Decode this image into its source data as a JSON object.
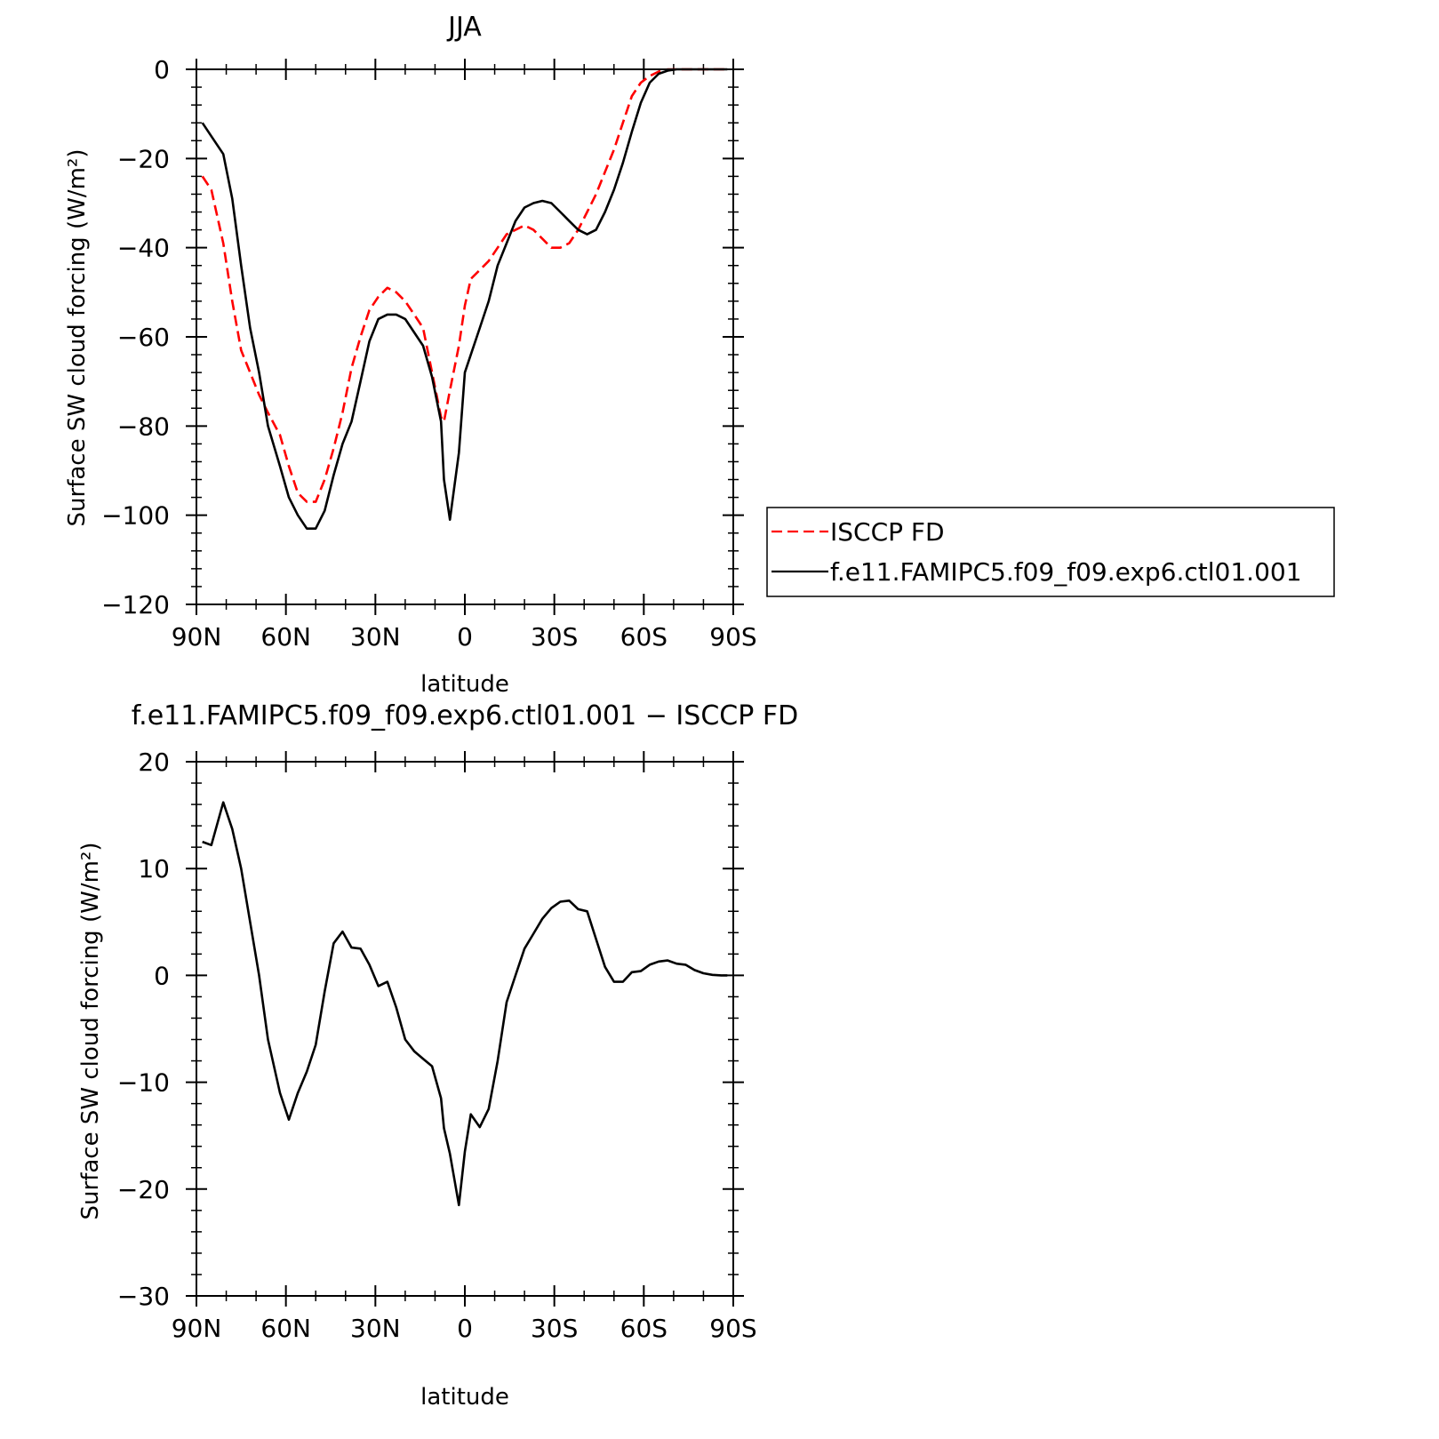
{
  "chart_data": [
    {
      "type": "line",
      "title": "JJA",
      "xlabel": "latitude",
      "ylabel": "Surface SW cloud forcing (W/m²)",
      "xlim": [
        90,
        -90
      ],
      "ylim": [
        -120,
        0
      ],
      "xticks": [
        90,
        60,
        30,
        0,
        -30,
        -60,
        -90
      ],
      "xtick_labels": [
        "90N",
        "60N",
        "30N",
        "0",
        "30S",
        "60S",
        "90S"
      ],
      "yticks": [
        0,
        -20,
        -40,
        -60,
        -80,
        -100,
        -120
      ],
      "ytick_labels": [
        "0",
        "−20",
        "−40",
        "−60",
        "−80",
        "−100",
        "−120"
      ],
      "legend": {
        "position": "right",
        "entries": [
          "ISCCP FD",
          "f.e11.FAMIPC5.f09_f09.exp6.ctl01.001"
        ]
      },
      "series": [
        {
          "name": "ISCCP FD",
          "color": "#ff0000",
          "dash": "dashed",
          "x": [
            88,
            85,
            81,
            78,
            75,
            72,
            69,
            66,
            62,
            59,
            56,
            53,
            50,
            47,
            44,
            41,
            38,
            35,
            32,
            29,
            26,
            23,
            20,
            17,
            14,
            11,
            8,
            7,
            5,
            2,
            0,
            -2,
            -5,
            -8,
            -11,
            -14,
            -17,
            -20,
            -23,
            -26,
            -29,
            -32,
            -35,
            -38,
            -41,
            -44,
            -47,
            -50,
            -53,
            -56,
            -59,
            -62,
            -65,
            -68,
            -71,
            -74,
            -77,
            -80,
            -83,
            -86,
            -88
          ],
          "y": [
            -24,
            -27,
            -39,
            -52,
            -63,
            -68,
            -73,
            -77,
            -82,
            -89,
            -95,
            -97,
            -97,
            -92,
            -85,
            -77,
            -67,
            -60,
            -54,
            -51,
            -49,
            -50,
            -52,
            -55,
            -58,
            -68,
            -78,
            -79,
            -72,
            -62,
            -53,
            -47,
            -45,
            -43,
            -40,
            -37,
            -36,
            -35,
            -36,
            -38,
            -40,
            -40,
            -39,
            -36,
            -32,
            -28,
            -23,
            -18,
            -12,
            -6,
            -3,
            -1.5,
            -0.5,
            0,
            0,
            0,
            0,
            0,
            0,
            0,
            0
          ]
        },
        {
          "name": "f.e11.FAMIPC5.f09_f09.exp6.ctl01.001",
          "color": "#000000",
          "dash": "solid",
          "x": [
            88,
            85,
            81,
            78,
            75,
            72,
            69,
            66,
            62,
            59,
            56,
            53,
            50,
            47,
            44,
            41,
            38,
            35,
            32,
            29,
            26,
            23,
            20,
            17,
            14,
            11,
            8,
            7,
            5,
            2,
            0,
            -2,
            -5,
            -8,
            -11,
            -14,
            -17,
            -20,
            -23,
            -26,
            -29,
            -32,
            -35,
            -38,
            -41,
            -44,
            -47,
            -50,
            -53,
            -56,
            -59,
            -62,
            -65,
            -68,
            -71,
            -74,
            -77,
            -80,
            -83,
            -86,
            -88
          ],
          "y": [
            -12,
            -15,
            -19,
            -29,
            -44,
            -58,
            -68,
            -80,
            -89,
            -96,
            -100,
            -103,
            -103,
            -99,
            -91,
            -84,
            -79,
            -70,
            -61,
            -56,
            -55,
            -55,
            -56,
            -59,
            -62,
            -69,
            -79,
            -92,
            -101,
            -86,
            -68,
            -64,
            -58,
            -52,
            -44,
            -39,
            -34,
            -31,
            -30,
            -29.5,
            -30,
            -32,
            -34,
            -36,
            -37,
            -36,
            -32,
            -27,
            -21,
            -14,
            -7.5,
            -3,
            -1,
            -0.3,
            0,
            0,
            0,
            0,
            0,
            0,
            0
          ]
        }
      ]
    },
    {
      "type": "line",
      "title": "f.e11.FAMIPC5.f09_f09.exp6.ctl01.001 − ISCCP FD",
      "xlabel": "latitude",
      "ylabel": "Surface SW cloud forcing (W/m²)",
      "xlim": [
        90,
        -90
      ],
      "ylim": [
        -30,
        20
      ],
      "xticks": [
        90,
        60,
        30,
        0,
        -30,
        -60,
        -90
      ],
      "xtick_labels": [
        "90N",
        "60N",
        "30N",
        "0",
        "30S",
        "60S",
        "90S"
      ],
      "yticks": [
        20,
        10,
        0,
        -10,
        -20,
        -30
      ],
      "ytick_labels": [
        "20",
        "10",
        "0",
        "−10",
        "−20",
        "−30"
      ],
      "series": [
        {
          "color": "#000000",
          "dash": "solid",
          "x": [
            88,
            85,
            81,
            78,
            75,
            72,
            69,
            66,
            62,
            59,
            56,
            53,
            50,
            47,
            44,
            41,
            38,
            35,
            32,
            29,
            26,
            23,
            20,
            17,
            14,
            11,
            8,
            7,
            5,
            2,
            0,
            -2,
            -5,
            -8,
            -11,
            -14,
            -17,
            -20,
            -23,
            -26,
            -29,
            -32,
            -35,
            -38,
            -41,
            -44,
            -47,
            -50,
            -53,
            -56,
            -59,
            -62,
            -65,
            -68,
            -71,
            -74,
            -77,
            -80,
            -83,
            -86,
            -88
          ],
          "y": [
            12.5,
            12.2,
            16.2,
            13.7,
            10,
            5,
            0,
            -6,
            -11,
            -13.5,
            -11,
            -9,
            -6.5,
            -1.5,
            3,
            4.1,
            2.6,
            2.5,
            1.0,
            -1.0,
            -0.6,
            -3.0,
            -6.0,
            -7.1,
            -7.8,
            -8.5,
            -11.5,
            -14.3,
            -16.7,
            -21.5,
            -16.5,
            -13.0,
            -14.2,
            -12.5,
            -8.0,
            -2.5,
            0.0,
            2.5,
            3.9,
            5.3,
            6.3,
            6.9,
            7.0,
            6.2,
            6.0,
            3.4,
            0.8,
            -0.6,
            -0.6,
            0.3,
            0.4,
            1.0,
            1.3,
            1.4,
            1.1,
            1.0,
            0.5,
            0.2,
            0.05,
            0.0,
            0.0
          ]
        }
      ]
    }
  ]
}
